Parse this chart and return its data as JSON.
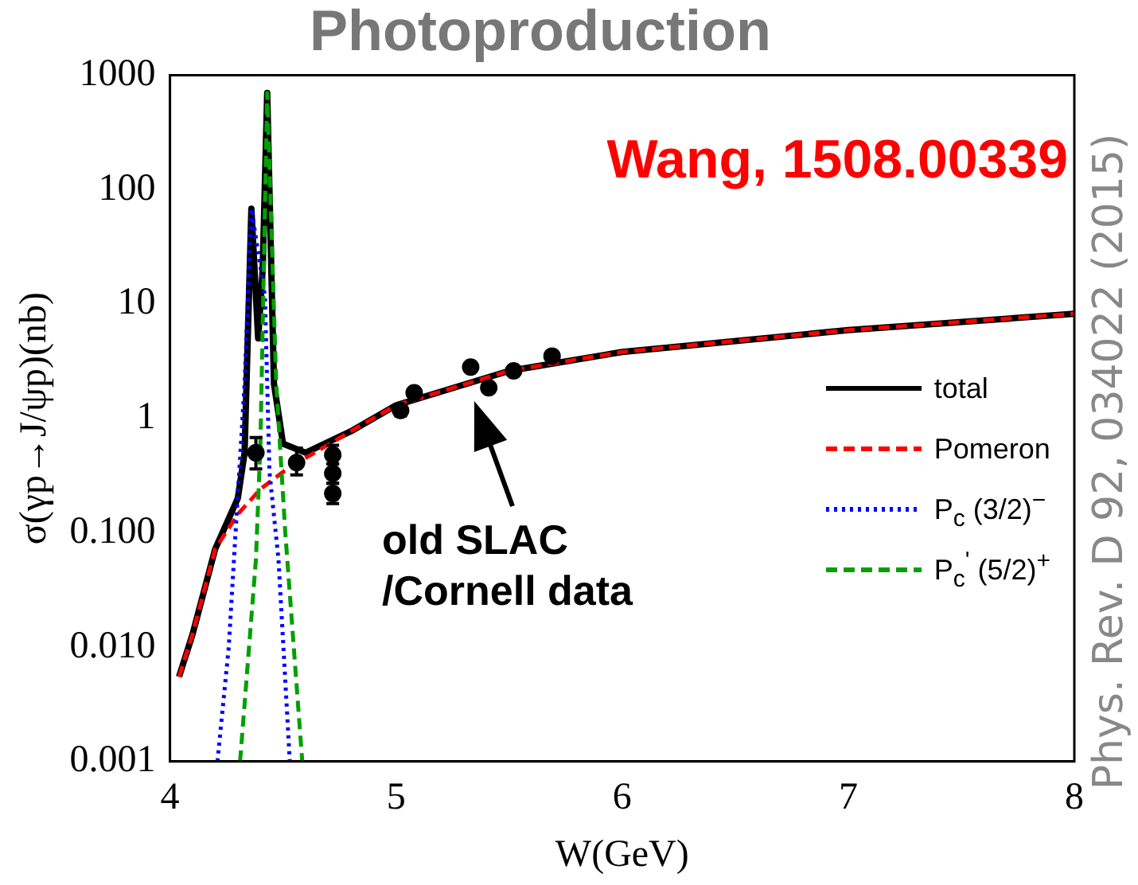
{
  "chart_data": {
    "type": "line",
    "title": "Photoproduction",
    "xlabel": "W(GeV)",
    "ylabel": "σ(γp→J/ψp)(nb)",
    "log": "y",
    "xlim": [
      4,
      8
    ],
    "xticks": [
      4,
      5,
      6,
      7,
      8
    ],
    "ylim": [
      0.001,
      1000
    ],
    "yticks": [
      {
        "value": 0.001,
        "label": "0.001"
      },
      {
        "value": 0.01,
        "label": "0.010"
      },
      {
        "value": 0.1,
        "label": "0.100"
      },
      1,
      10,
      100,
      1000
    ],
    "grid": false,
    "legend": "right",
    "annotations": [
      "Wang, 1508.00339",
      "old SLAC /Cornell data",
      "Phys. Rev. D 92, 034022 (2015)"
    ],
    "series": [
      {
        "name": "total",
        "color": "#000000",
        "line_style": "solid",
        "x": [
          4.04,
          4.1,
          4.2,
          4.3,
          4.33,
          4.36,
          4.39,
          4.41,
          4.43,
          4.46,
          4.5,
          4.6,
          4.8,
          5,
          5.5,
          6,
          7,
          8
        ],
        "values": [
          0.0055,
          0.013,
          0.072,
          0.2,
          0.5,
          68,
          5,
          20,
          700,
          2,
          0.6,
          0.5,
          0.77,
          1.3,
          2.6,
          3.8,
          5.9,
          8.2
        ]
      },
      {
        "name": "Pomeron",
        "color": "#ff0000",
        "line_style": "dashed",
        "x": [
          4.04,
          4.1,
          4.2,
          4.3,
          4.4,
          4.5,
          4.6,
          4.8,
          5,
          5.5,
          6,
          7,
          8
        ],
        "values": [
          0.0055,
          0.013,
          0.072,
          0.145,
          0.24,
          0.34,
          0.45,
          0.77,
          1.3,
          2.6,
          3.8,
          5.9,
          8.2
        ]
      },
      {
        "name": "P$_{c}$ (3/2)$^{−}$",
        "color": "#0000ff",
        "line_style": "dotted",
        "x": [
          4.21,
          4.26,
          4.29,
          4.33,
          4.36,
          4.42,
          4.44,
          4.48,
          4.53
        ],
        "values": [
          0.001,
          0.01,
          0.1,
          2,
          68,
          11.7,
          0.34,
          0.058,
          0.001
        ]
      },
      {
        "name": "P$_{c}$$^{'}$ (5/2)$^{+}$",
        "color": "#00a000",
        "line_style": "dashed",
        "x": [
          4.31,
          4.38,
          4.4,
          4.43,
          4.47,
          4.51,
          4.585
        ],
        "values": [
          0.001,
          0.058,
          0.6,
          700,
          2,
          0.1,
          0.001
        ]
      },
      {
        "type": "scatter",
        "color": "#000000",
        "marker": "circle",
        "x": [
          4.38,
          4.56,
          4.72,
          4.72,
          4.72,
          5.02,
          5.08,
          5.33,
          5.41,
          5.52,
          5.69
        ],
        "values": [
          0.5,
          0.41,
          0.48,
          0.33,
          0.22,
          1.17,
          1.67,
          2.8,
          1.85,
          2.6,
          3.5
        ],
        "errors": [
          [
            0.36,
            0.68
          ],
          [
            0.32,
            0.55
          ],
          [
            0.4,
            0.58
          ],
          [
            0.27,
            0.4
          ],
          [
            0.18,
            0.27
          ],
          [
            1.05,
            1.3
          ],
          null,
          null,
          null,
          null,
          null
        ]
      }
    ]
  }
}
